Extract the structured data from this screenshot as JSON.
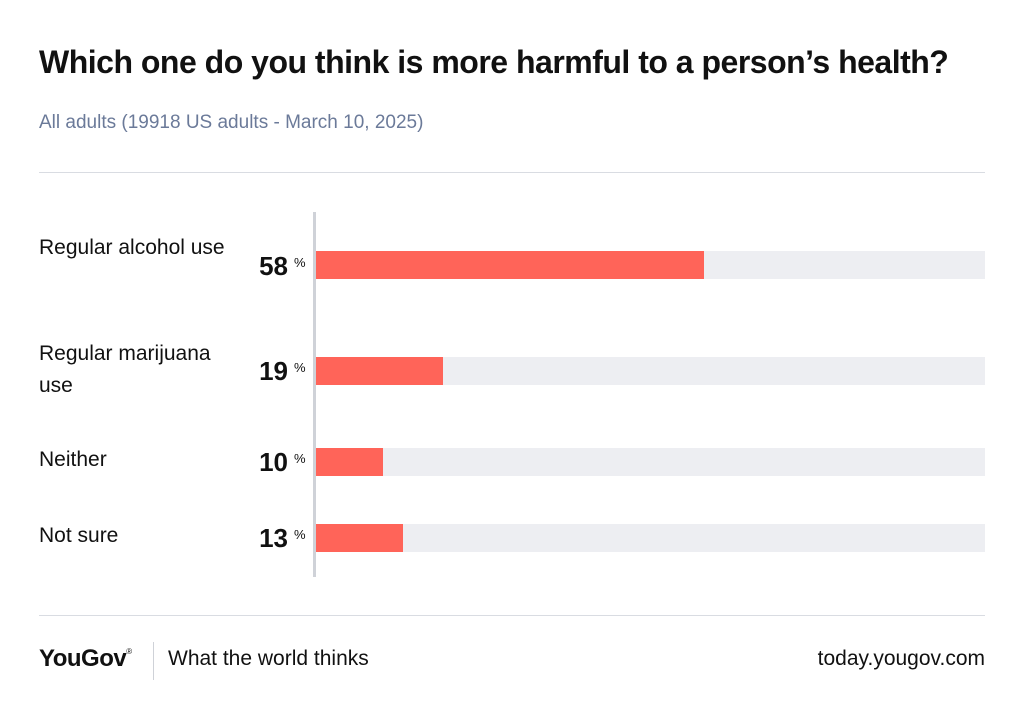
{
  "header": {
    "title": "Which one do you think is more harmful to a person’s health?",
    "subtitle": "All adults (19918 US adults - March 10, 2025)"
  },
  "chart_data": {
    "type": "bar",
    "orientation": "horizontal",
    "categories": [
      "Regular alcohol use",
      "Regular marijuana use",
      "Neither",
      "Not sure"
    ],
    "values": [
      58,
      19,
      10,
      13
    ],
    "value_labels": [
      "58",
      "19",
      "10",
      "13"
    ],
    "unit": "%",
    "xlim": [
      0,
      100
    ],
    "bar_color": "#ff6459",
    "track_color": "#edeef2",
    "title": "Which one do you think is more harmful to a person’s health?",
    "subtitle": "All adults (19918 US adults - March 10, 2025)"
  },
  "footer": {
    "logo": "YouGov",
    "logo_mark": "®",
    "tagline": "What the world thinks",
    "url": "today.yougov.com"
  }
}
